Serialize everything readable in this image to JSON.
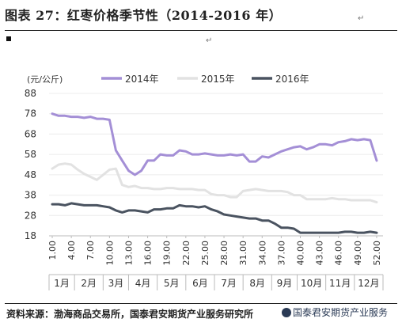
{
  "header": {
    "title": "图表 27：红枣价格季节性（2014-2016 年）"
  },
  "footer": {
    "source": "资料来源：渤海商品交易所，国泰君安期货产业服务研究所",
    "watermark": "国泰君安期货产业服务"
  },
  "chart_data": {
    "type": "line",
    "unit_label": "(元/公斤)",
    "ylim": [
      18,
      88
    ],
    "yticks": [
      18,
      28,
      38,
      48,
      58,
      68,
      78,
      88
    ],
    "x_tick_labels": [
      "1.00",
      "4.00",
      "7.00",
      "10.00",
      "13.00",
      "16.00",
      "19.00",
      "22.00",
      "25.00",
      "28.00",
      "31.00",
      "34.00",
      "37.00",
      "40.00",
      "43.00",
      "46.00",
      "49.00",
      "52.00"
    ],
    "x_tick_positions": [
      1,
      4,
      7,
      10,
      13,
      16,
      19,
      22,
      25,
      28,
      31,
      34,
      37,
      40,
      43,
      46,
      49,
      52
    ],
    "months": [
      {
        "label": "1月",
        "start": 0.5,
        "end": 4.5
      },
      {
        "label": "2月",
        "start": 4.5,
        "end": 9
      },
      {
        "label": "3月",
        "start": 9,
        "end": 13
      },
      {
        "label": "4月",
        "start": 13,
        "end": 17.5
      },
      {
        "label": "5月",
        "start": 17.5,
        "end": 22
      },
      {
        "label": "6月",
        "start": 22,
        "end": 26.5
      },
      {
        "label": "7月",
        "start": 26.5,
        "end": 31
      },
      {
        "label": "8月",
        "start": 31,
        "end": 35.5
      },
      {
        "label": "9月",
        "start": 35.5,
        "end": 39.5
      },
      {
        "label": "10月",
        "start": 39.5,
        "end": 44
      },
      {
        "label": "11月",
        "start": 44,
        "end": 48.5
      },
      {
        "label": "12月",
        "start": 48.5,
        "end": 53
      }
    ],
    "legend_position": "top",
    "series": [
      {
        "name": "2014年",
        "color": "#a48fd6",
        "x": [
          1,
          2,
          3,
          4,
          5,
          6,
          7,
          8,
          9,
          10,
          11,
          12,
          13,
          14,
          15,
          16,
          17,
          18,
          19,
          20,
          21,
          22,
          23,
          24,
          25,
          26,
          27,
          28,
          29,
          30,
          31,
          32,
          33,
          34,
          35,
          36,
          37,
          38,
          39,
          40,
          41,
          42,
          43,
          44,
          45,
          46,
          47,
          48,
          49,
          50,
          51,
          52
        ],
        "values": [
          78,
          77,
          77,
          76.5,
          76.5,
          76,
          76.5,
          75.5,
          75.5,
          75,
          60,
          55,
          50,
          48,
          50,
          55,
          55,
          58,
          57.5,
          57.5,
          60,
          59.5,
          58,
          58,
          58.5,
          58,
          57.5,
          57.5,
          58,
          57.5,
          58,
          54.5,
          54.5,
          57,
          56.5,
          58,
          59.5,
          60.5,
          61.5,
          62,
          60.5,
          61.5,
          63,
          63,
          62.5,
          64,
          64.5,
          65.5,
          65,
          65.5,
          65,
          55
        ]
      },
      {
        "name": "2015年",
        "color": "#e2e2e2",
        "x": [
          1,
          2,
          3,
          4,
          5,
          6,
          7,
          8,
          9,
          10,
          11,
          12,
          13,
          14,
          15,
          16,
          17,
          18,
          19,
          20,
          21,
          22,
          23,
          24,
          25,
          26,
          27,
          28,
          29,
          30,
          31,
          32,
          33,
          34,
          35,
          36,
          37,
          38,
          39,
          40,
          41,
          42,
          43,
          44,
          45,
          46,
          47,
          48,
          49,
          50,
          51,
          52
        ],
        "values": [
          51,
          53,
          53.5,
          53,
          50.5,
          48.5,
          47,
          45.5,
          48,
          50.5,
          51,
          43,
          42,
          42.5,
          41.5,
          41.5,
          41,
          41,
          41.5,
          41.5,
          41,
          41,
          41,
          40.5,
          40.5,
          38.5,
          38,
          38,
          37,
          37,
          40,
          40.5,
          41,
          40.5,
          40,
          40,
          40,
          39.5,
          38,
          38,
          36,
          36,
          36,
          36,
          36.5,
          36,
          36,
          35.5,
          35.5,
          35.5,
          35.5,
          34.5
        ]
      },
      {
        "name": "2016年",
        "color": "#4a5360",
        "x": [
          1,
          2,
          3,
          4,
          5,
          6,
          7,
          8,
          9,
          10,
          11,
          12,
          13,
          14,
          15,
          16,
          17,
          18,
          19,
          20,
          21,
          22,
          23,
          24,
          25,
          26,
          27,
          28,
          29,
          30,
          31,
          32,
          33,
          34,
          35,
          36,
          37,
          38,
          39,
          40,
          41,
          42,
          43,
          44,
          45,
          46,
          47,
          48,
          49,
          50,
          51,
          52
        ],
        "values": [
          33.5,
          33.5,
          33,
          34,
          33.5,
          33,
          33,
          33,
          32.5,
          32,
          30.5,
          29.5,
          30.5,
          30.5,
          30,
          29.5,
          31,
          31,
          31.5,
          31.5,
          33,
          32.5,
          32.5,
          32,
          32.5,
          31,
          30,
          28.5,
          28,
          27.5,
          27,
          26.5,
          26.5,
          25.5,
          25.5,
          24,
          22,
          22,
          21.5,
          19.5,
          19.5,
          19.5,
          19.5,
          19.5,
          19.5,
          19.5,
          20,
          20,
          19.5,
          19.5,
          20,
          19.5
        ]
      }
    ]
  }
}
